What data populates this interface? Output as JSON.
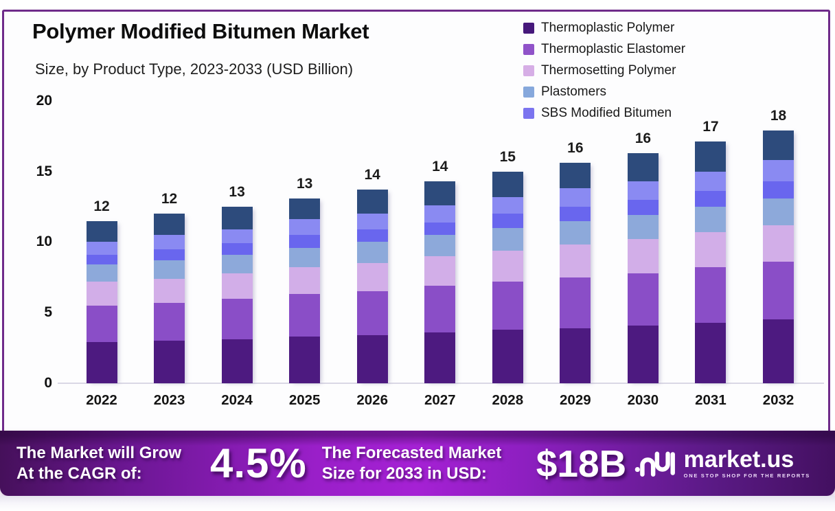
{
  "page": {
    "title": "Polymer Modified Bitumen Market",
    "subtitle": "Size, by Product Type, 2023-2033 (USD Billion)"
  },
  "colors": {
    "frame": "#6f2b8a",
    "baseline": "#dad8e5",
    "banner_dark": "#45105a",
    "banner_bright": "#a521d4"
  },
  "legend": {
    "items": [
      {
        "label": "Thermoplastic Polymer",
        "color": "#46187b"
      },
      {
        "label": "Thermoplastic Elastomer",
        "color": "#9053c9"
      },
      {
        "label": "Thermosetting Polymer",
        "color": "#d6aee6"
      },
      {
        "label": "Plastomers",
        "color": "#86a8dc"
      },
      {
        "label": "SBS Modified Bitumen",
        "color": "#7b74ef"
      }
    ]
  },
  "chart_data": {
    "type": "bar",
    "stacked": true,
    "title": "Polymer Modified Bitumen Market",
    "subtitle": "Size, by Product Type, 2023-2033 (USD Billion)",
    "xlabel": "",
    "ylabel": "USD Billion",
    "ylim": [
      0,
      20
    ],
    "yticks": [
      0,
      5,
      10,
      15,
      20
    ],
    "grid": false,
    "legend_position": "top-right",
    "categories": [
      "2022",
      "2023",
      "2024",
      "2025",
      "2026",
      "2027",
      "2028",
      "2029",
      "2030",
      "2031",
      "2032"
    ],
    "totals_labels": [
      "12",
      "12",
      "13",
      "13",
      "14",
      "14",
      "15",
      "16",
      "16",
      "17",
      "18"
    ],
    "series": [
      {
        "name": "Thermoplastic Polymer",
        "color": "#4d1a80",
        "values": [
          2.9,
          3.0,
          3.1,
          3.3,
          3.4,
          3.6,
          3.8,
          3.9,
          4.1,
          4.3,
          4.5
        ]
      },
      {
        "name": "Thermoplastic Elastomer",
        "color": "#8a4ec7",
        "values": [
          2.6,
          2.7,
          2.9,
          3.0,
          3.1,
          3.3,
          3.4,
          3.6,
          3.7,
          3.9,
          4.1
        ]
      },
      {
        "name": "Thermosetting Polymer",
        "color": "#d2aee8",
        "values": [
          1.7,
          1.7,
          1.8,
          1.9,
          2.0,
          2.1,
          2.2,
          2.3,
          2.4,
          2.5,
          2.6
        ]
      },
      {
        "name": "Plastomers",
        "color": "#8da9da",
        "values": [
          1.2,
          1.3,
          1.3,
          1.4,
          1.5,
          1.5,
          1.6,
          1.7,
          1.7,
          1.8,
          1.9
        ]
      },
      {
        "name": "SBS Modified Bitumen",
        "color": "#6966ee",
        "values": [
          0.7,
          0.8,
          0.8,
          0.9,
          0.9,
          0.9,
          1.0,
          1.0,
          1.1,
          1.1,
          1.2
        ]
      },
      {
        "name": "unlabeled-segment-periwinkle",
        "color": "#8a8af2",
        "values": [
          0.9,
          1.0,
          1.0,
          1.1,
          1.1,
          1.2,
          1.2,
          1.3,
          1.3,
          1.4,
          1.5
        ]
      },
      {
        "name": "unlabeled-segment-navy",
        "color": "#2d4b7c",
        "values": [
          1.5,
          1.5,
          1.6,
          1.5,
          1.7,
          1.7,
          1.8,
          1.8,
          2.0,
          2.1,
          2.1
        ]
      }
    ]
  },
  "banner": {
    "left_line1": "The Market will Grow",
    "left_line2": "At the CAGR of:",
    "cagr": "4.5%",
    "mid_line1": "The Forecasted Market",
    "mid_line2": "Size for 2033 in USD:",
    "forecast": "$18B",
    "brand": "market.us",
    "tagline": "ONE STOP SHOP FOR THE REPORTS"
  }
}
